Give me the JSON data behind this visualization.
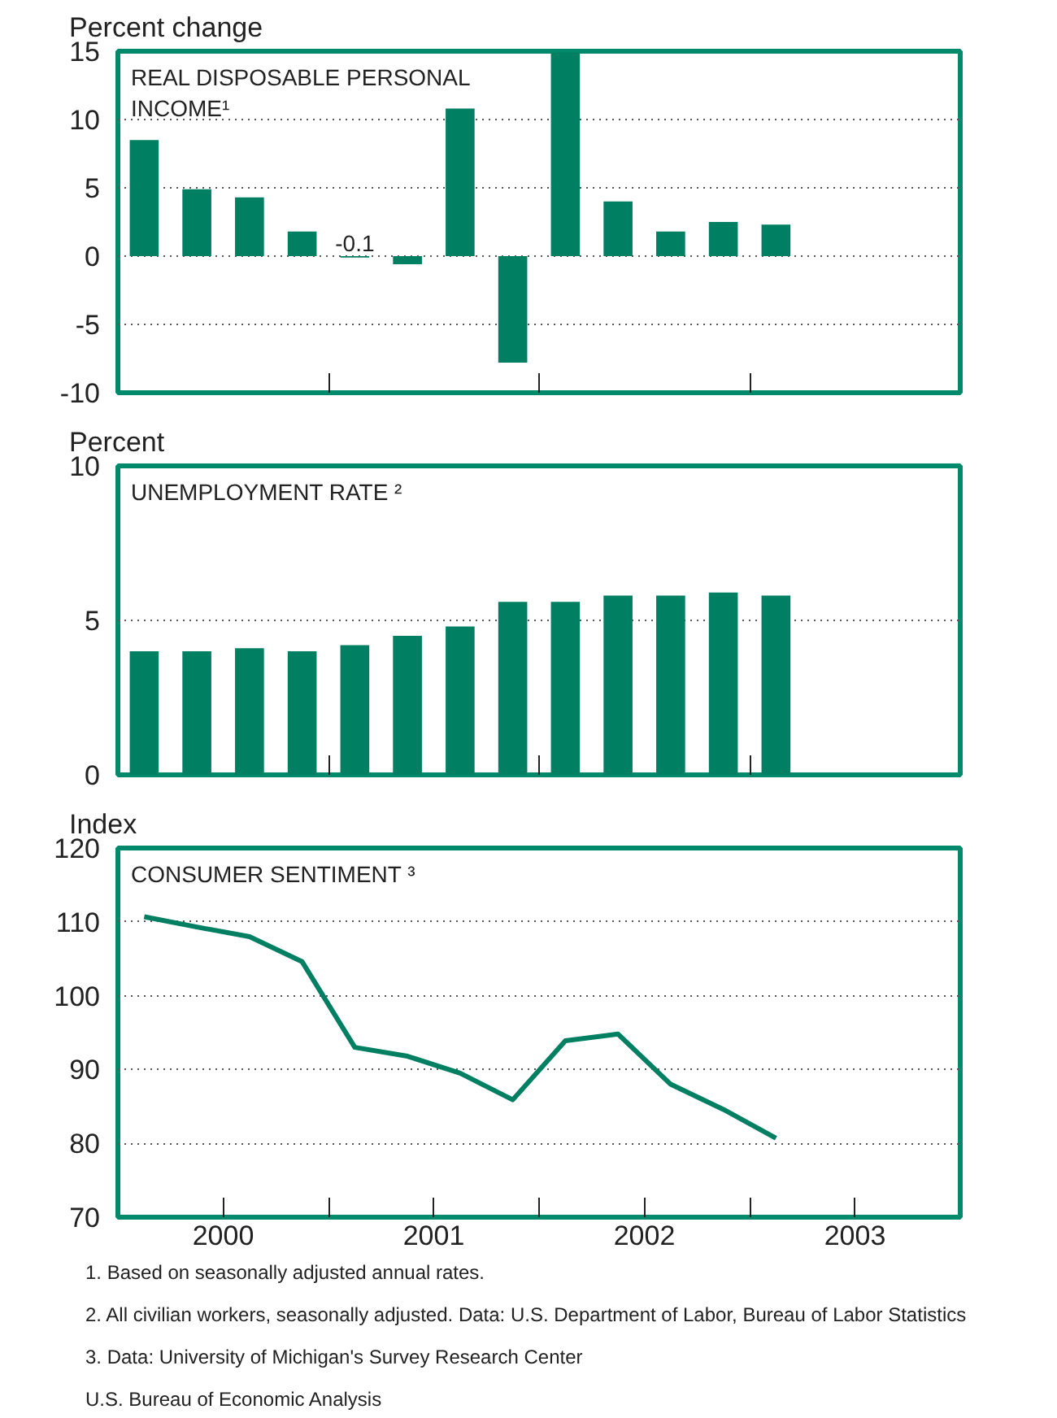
{
  "chart_data": [
    {
      "type": "bar",
      "title": "REAL DISPOSABLE PERSONAL INCOME¹",
      "ylabel": "Percent change",
      "color": "#007f62",
      "x": [
        2000.125,
        2000.375,
        2000.625,
        2000.875,
        2001.125,
        2001.375,
        2001.625,
        2001.875,
        2002.125,
        2002.375,
        2002.625,
        2002.875,
        2003.125
      ],
      "values": [
        8.5,
        4.9,
        4.3,
        1.8,
        -0.1,
        -0.6,
        10.8,
        -7.8,
        14.9,
        4.0,
        1.8,
        2.5,
        2.3
      ],
      "xlim": [
        2000,
        2004
      ],
      "xticks": [
        {
          "value": 2001,
          "label": null
        },
        {
          "value": 2002,
          "label": null
        },
        {
          "value": 2003,
          "label": null
        }
      ],
      "ylim": [
        -10,
        15
      ],
      "yticks": [
        -10,
        -5,
        0,
        5,
        10,
        15
      ],
      "grid": "y",
      "tick_labels": "y",
      "annotations": [
        {
          "text": "-0.1",
          "x": 2001.125,
          "y": -0.1
        }
      ]
    },
    {
      "type": "bar",
      "title": "UNEMPLOYMENT RATE ²",
      "ylabel": "Percent",
      "color": "#007f62",
      "x": [
        2000.125,
        2000.375,
        2000.625,
        2000.875,
        2001.125,
        2001.375,
        2001.625,
        2001.875,
        2002.125,
        2002.375,
        2002.625,
        2002.875,
        2003.125
      ],
      "values": [
        4.0,
        4.0,
        4.1,
        4.0,
        4.2,
        4.5,
        4.8,
        5.6,
        5.6,
        5.8,
        5.8,
        5.9,
        5.8
      ],
      "xlim": [
        2000,
        2004
      ],
      "xticks": [
        {
          "value": 2001,
          "label": null
        },
        {
          "value": 2002,
          "label": null
        },
        {
          "value": 2003,
          "label": null
        }
      ],
      "ylim": [
        0,
        10
      ],
      "yticks": [
        0,
        5,
        10
      ],
      "grid": "y",
      "tick_labels": "y"
    },
    {
      "type": "line",
      "title": "CONSUMER SENTIMENT ³",
      "ylabel": "Index",
      "color": "#007f62",
      "x": [
        2000.125,
        2000.375,
        2000.625,
        2000.875,
        2001.125,
        2001.375,
        2001.625,
        2001.875,
        2002.125,
        2002.375,
        2002.625,
        2002.875,
        2003.125
      ],
      "values": [
        110.7,
        109.3,
        108.0,
        104.6,
        93.0,
        91.8,
        89.5,
        85.9,
        93.9,
        94.8,
        88.0,
        84.6,
        80.7
      ],
      "xlim": [
        2000,
        2004
      ],
      "xticks": [
        {
          "value": 2000.5,
          "label": "2000"
        },
        {
          "value": 2001,
          "label": null
        },
        {
          "value": 2001.5,
          "label": "2001"
        },
        {
          "value": 2002,
          "label": null
        },
        {
          "value": 2002.5,
          "label": "2002"
        },
        {
          "value": 2003,
          "label": null
        },
        {
          "value": 2003.5,
          "label": "2003"
        }
      ],
      "ylim": [
        70,
        120
      ],
      "yticks": [
        70,
        80,
        90,
        100,
        110,
        120
      ],
      "grid": "y",
      "marker": "none",
      "line_style": "solid",
      "annotations": [
        "1. Based on seasonally adjusted annual rates.",
        "2. All civilian workers, seasonally adjusted.  Data: U.S. Department of Labor, Bureau of Labor Statistics",
        "3. Data: University of Michigan's Survey Research Center",
        "U.S. Bureau of Economic Analysis"
      ]
    }
  ]
}
